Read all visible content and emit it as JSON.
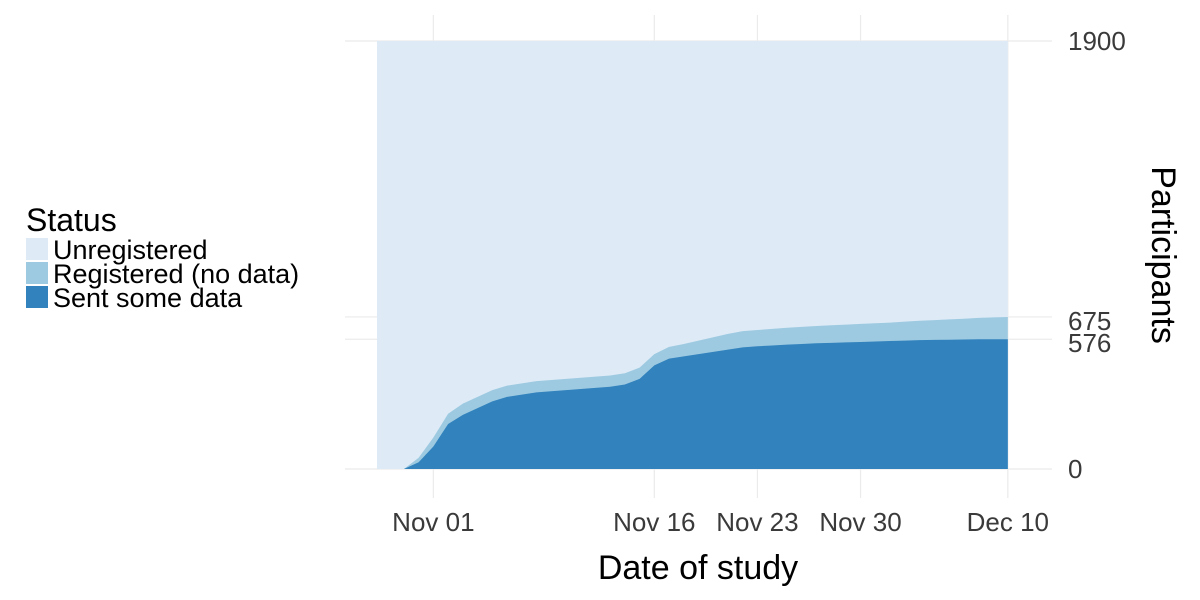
{
  "chart_data": {
    "type": "area",
    "stacked": true,
    "xlabel": "Date of study",
    "ylabel": "Participants",
    "y_axis_position": "right",
    "x_ticks": [
      {
        "date": "2017-11-01",
        "label": "Nov 01"
      },
      {
        "date": "2017-11-16",
        "label": "Nov 16"
      },
      {
        "date": "2017-11-23",
        "label": "Nov 23"
      },
      {
        "date": "2017-11-30",
        "label": "Nov 30"
      },
      {
        "date": "2017-12-10",
        "label": "Dec 10"
      }
    ],
    "xlim": [
      "2017-10-26",
      "2017-12-13"
    ],
    "y_ticks": [
      {
        "value": 0,
        "label": "0"
      },
      {
        "value": 576,
        "label": "576"
      },
      {
        "value": 675,
        "label": "675"
      },
      {
        "value": 1900,
        "label": "1900"
      }
    ],
    "ylim": [
      0,
      1900
    ],
    "grid": true,
    "legend": {
      "title": "Status",
      "position": "left",
      "entries": [
        {
          "label": "Unregistered",
          "color": "#deebf7"
        },
        {
          "label": "Registered (no data)",
          "color": "#9ecae1"
        },
        {
          "label": "Sent some data",
          "color": "#3182bd"
        }
      ]
    },
    "series": [
      {
        "name": "Sent some data",
        "color": "#3182bd",
        "x": [
          "2017-10-29",
          "2017-10-30",
          "2017-10-31",
          "2017-11-01",
          "2017-11-02",
          "2017-11-03",
          "2017-11-04",
          "2017-11-05",
          "2017-11-06",
          "2017-11-07",
          "2017-11-08",
          "2017-11-09",
          "2017-11-10",
          "2017-11-11",
          "2017-11-12",
          "2017-11-13",
          "2017-11-14",
          "2017-11-15",
          "2017-11-16",
          "2017-11-17",
          "2017-11-18",
          "2017-11-19",
          "2017-11-20",
          "2017-11-21",
          "2017-11-22",
          "2017-11-23",
          "2017-11-24",
          "2017-11-25",
          "2017-11-26",
          "2017-11-27",
          "2017-11-28",
          "2017-11-29",
          "2017-11-30",
          "2017-12-01",
          "2017-12-02",
          "2017-12-03",
          "2017-12-04",
          "2017-12-05",
          "2017-12-06",
          "2017-12-07",
          "2017-12-08",
          "2017-12-09",
          "2017-12-10"
        ],
        "values": [
          0,
          0,
          30,
          100,
          200,
          240,
          270,
          300,
          320,
          330,
          340,
          345,
          350,
          355,
          360,
          365,
          375,
          400,
          460,
          490,
          500,
          510,
          520,
          530,
          540,
          545,
          548,
          552,
          555,
          558,
          560,
          562,
          564,
          566,
          568,
          570,
          572,
          573,
          574,
          575,
          576,
          576,
          576
        ]
      },
      {
        "name": "Registered (no data)",
        "color": "#9ecae1",
        "x": [
          "2017-10-29",
          "2017-10-30",
          "2017-10-31",
          "2017-11-01",
          "2017-11-02",
          "2017-11-03",
          "2017-11-04",
          "2017-11-05",
          "2017-11-06",
          "2017-11-07",
          "2017-11-08",
          "2017-11-09",
          "2017-11-10",
          "2017-11-11",
          "2017-11-12",
          "2017-11-13",
          "2017-11-14",
          "2017-11-15",
          "2017-11-16",
          "2017-11-17",
          "2017-11-18",
          "2017-11-19",
          "2017-11-20",
          "2017-11-21",
          "2017-11-22",
          "2017-11-23",
          "2017-11-24",
          "2017-11-25",
          "2017-11-26",
          "2017-11-27",
          "2017-11-28",
          "2017-11-29",
          "2017-11-30",
          "2017-12-01",
          "2017-12-02",
          "2017-12-03",
          "2017-12-04",
          "2017-12-05",
          "2017-12-06",
          "2017-12-07",
          "2017-12-08",
          "2017-12-09",
          "2017-12-10"
        ],
        "values": [
          0,
          0,
          20,
          40,
          45,
          50,
          50,
          50,
          50,
          50,
          50,
          50,
          50,
          50,
          50,
          50,
          50,
          50,
          50,
          52,
          55,
          60,
          65,
          70,
          72,
          72,
          74,
          75,
          76,
          77,
          78,
          79,
          80,
          81,
          82,
          84,
          86,
          88,
          90,
          92,
          95,
          97,
          99
        ]
      },
      {
        "name": "Unregistered",
        "color": "#deebf7",
        "total": 1900
      }
    ]
  }
}
